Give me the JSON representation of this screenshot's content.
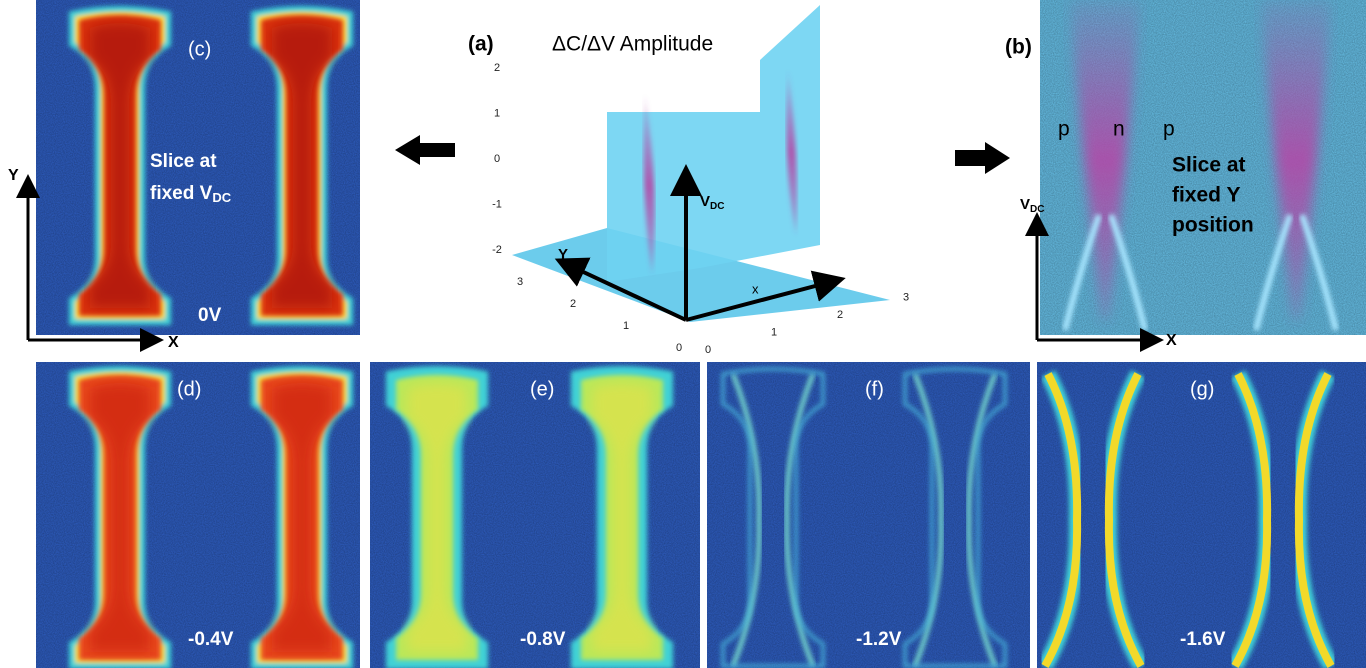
{
  "panels": {
    "a": {
      "label": "(a)",
      "title": "ΔC/ΔV Amplitude",
      "axis_vdc": "V",
      "axis_vdc_sub": "DC",
      "axis_y": "Y",
      "axis_x": "x",
      "vdc_ticks": [
        "2",
        "1",
        "0",
        "-1",
        "-2"
      ],
      "y_ticks": [
        "3",
        "2",
        "1",
        "0"
      ],
      "x_ticks": [
        "0",
        "1",
        "2",
        "3"
      ]
    },
    "b": {
      "label": "(b)",
      "region_labels": [
        "p",
        "n",
        "p"
      ],
      "caption_lines": [
        "Slice at",
        "fixed Y",
        "position"
      ],
      "axis_y": "V",
      "axis_y_sub": "DC",
      "axis_x": "X"
    },
    "c": {
      "label": "(c)",
      "caption_line1": "Slice at",
      "caption_line2": "fixed V",
      "caption_sub": "DC",
      "voltage": "0V",
      "axis_y": "Y",
      "axis_x": "X"
    },
    "d": {
      "label": "(d)",
      "voltage": "-0.4V"
    },
    "e": {
      "label": "(e)",
      "voltage": "-0.8V"
    },
    "f": {
      "label": "(f)",
      "voltage": "-1.2V"
    },
    "g": {
      "label": "(g)",
      "voltage": "-1.6V"
    }
  }
}
